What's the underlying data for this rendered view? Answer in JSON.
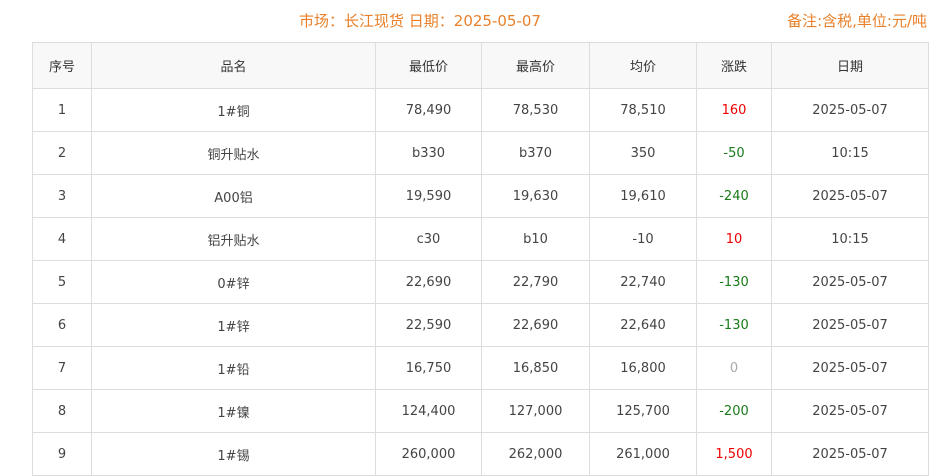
{
  "header": {
    "title": "市场：长江现货   日期：2025-05-07",
    "note": "备注:含税,单位:元/吨"
  },
  "columns": [
    "序号",
    "品名",
    "最低价",
    "最高价",
    "均价",
    "涨跌",
    "日期"
  ],
  "colors": {
    "up": "#e00000",
    "down": "#1a7a1a",
    "flat": "#aaaaaa",
    "accent": "#e8802a"
  },
  "rows": [
    {
      "no": "1",
      "name": "1#铜",
      "low": "78,490",
      "high": "78,530",
      "avg": "78,510",
      "change": "160",
      "dir": "up",
      "date": "2025-05-07"
    },
    {
      "no": "2",
      "name": "铜升贴水",
      "low": "b330",
      "high": "b370",
      "avg": "350",
      "change": "-50",
      "dir": "down",
      "date": "10:15"
    },
    {
      "no": "3",
      "name": "A00铝",
      "low": "19,590",
      "high": "19,630",
      "avg": "19,610",
      "change": "-240",
      "dir": "down",
      "date": "2025-05-07"
    },
    {
      "no": "4",
      "name": "铝升贴水",
      "low": "c30",
      "high": "b10",
      "avg": "-10",
      "change": "10",
      "dir": "up",
      "date": "10:15"
    },
    {
      "no": "5",
      "name": "0#锌",
      "low": "22,690",
      "high": "22,790",
      "avg": "22,740",
      "change": "-130",
      "dir": "down",
      "date": "2025-05-07"
    },
    {
      "no": "6",
      "name": "1#锌",
      "low": "22,590",
      "high": "22,690",
      "avg": "22,640",
      "change": "-130",
      "dir": "down",
      "date": "2025-05-07"
    },
    {
      "no": "7",
      "name": "1#铅",
      "low": "16,750",
      "high": "16,850",
      "avg": "16,800",
      "change": "0",
      "dir": "flat",
      "date": "2025-05-07"
    },
    {
      "no": "8",
      "name": "1#镍",
      "low": "124,400",
      "high": "127,000",
      "avg": "125,700",
      "change": "-200",
      "dir": "down",
      "date": "2025-05-07"
    },
    {
      "no": "9",
      "name": "1#锡",
      "low": "260,000",
      "high": "262,000",
      "avg": "261,000",
      "change": "1,500",
      "dir": "up",
      "date": "2025-05-07"
    }
  ]
}
